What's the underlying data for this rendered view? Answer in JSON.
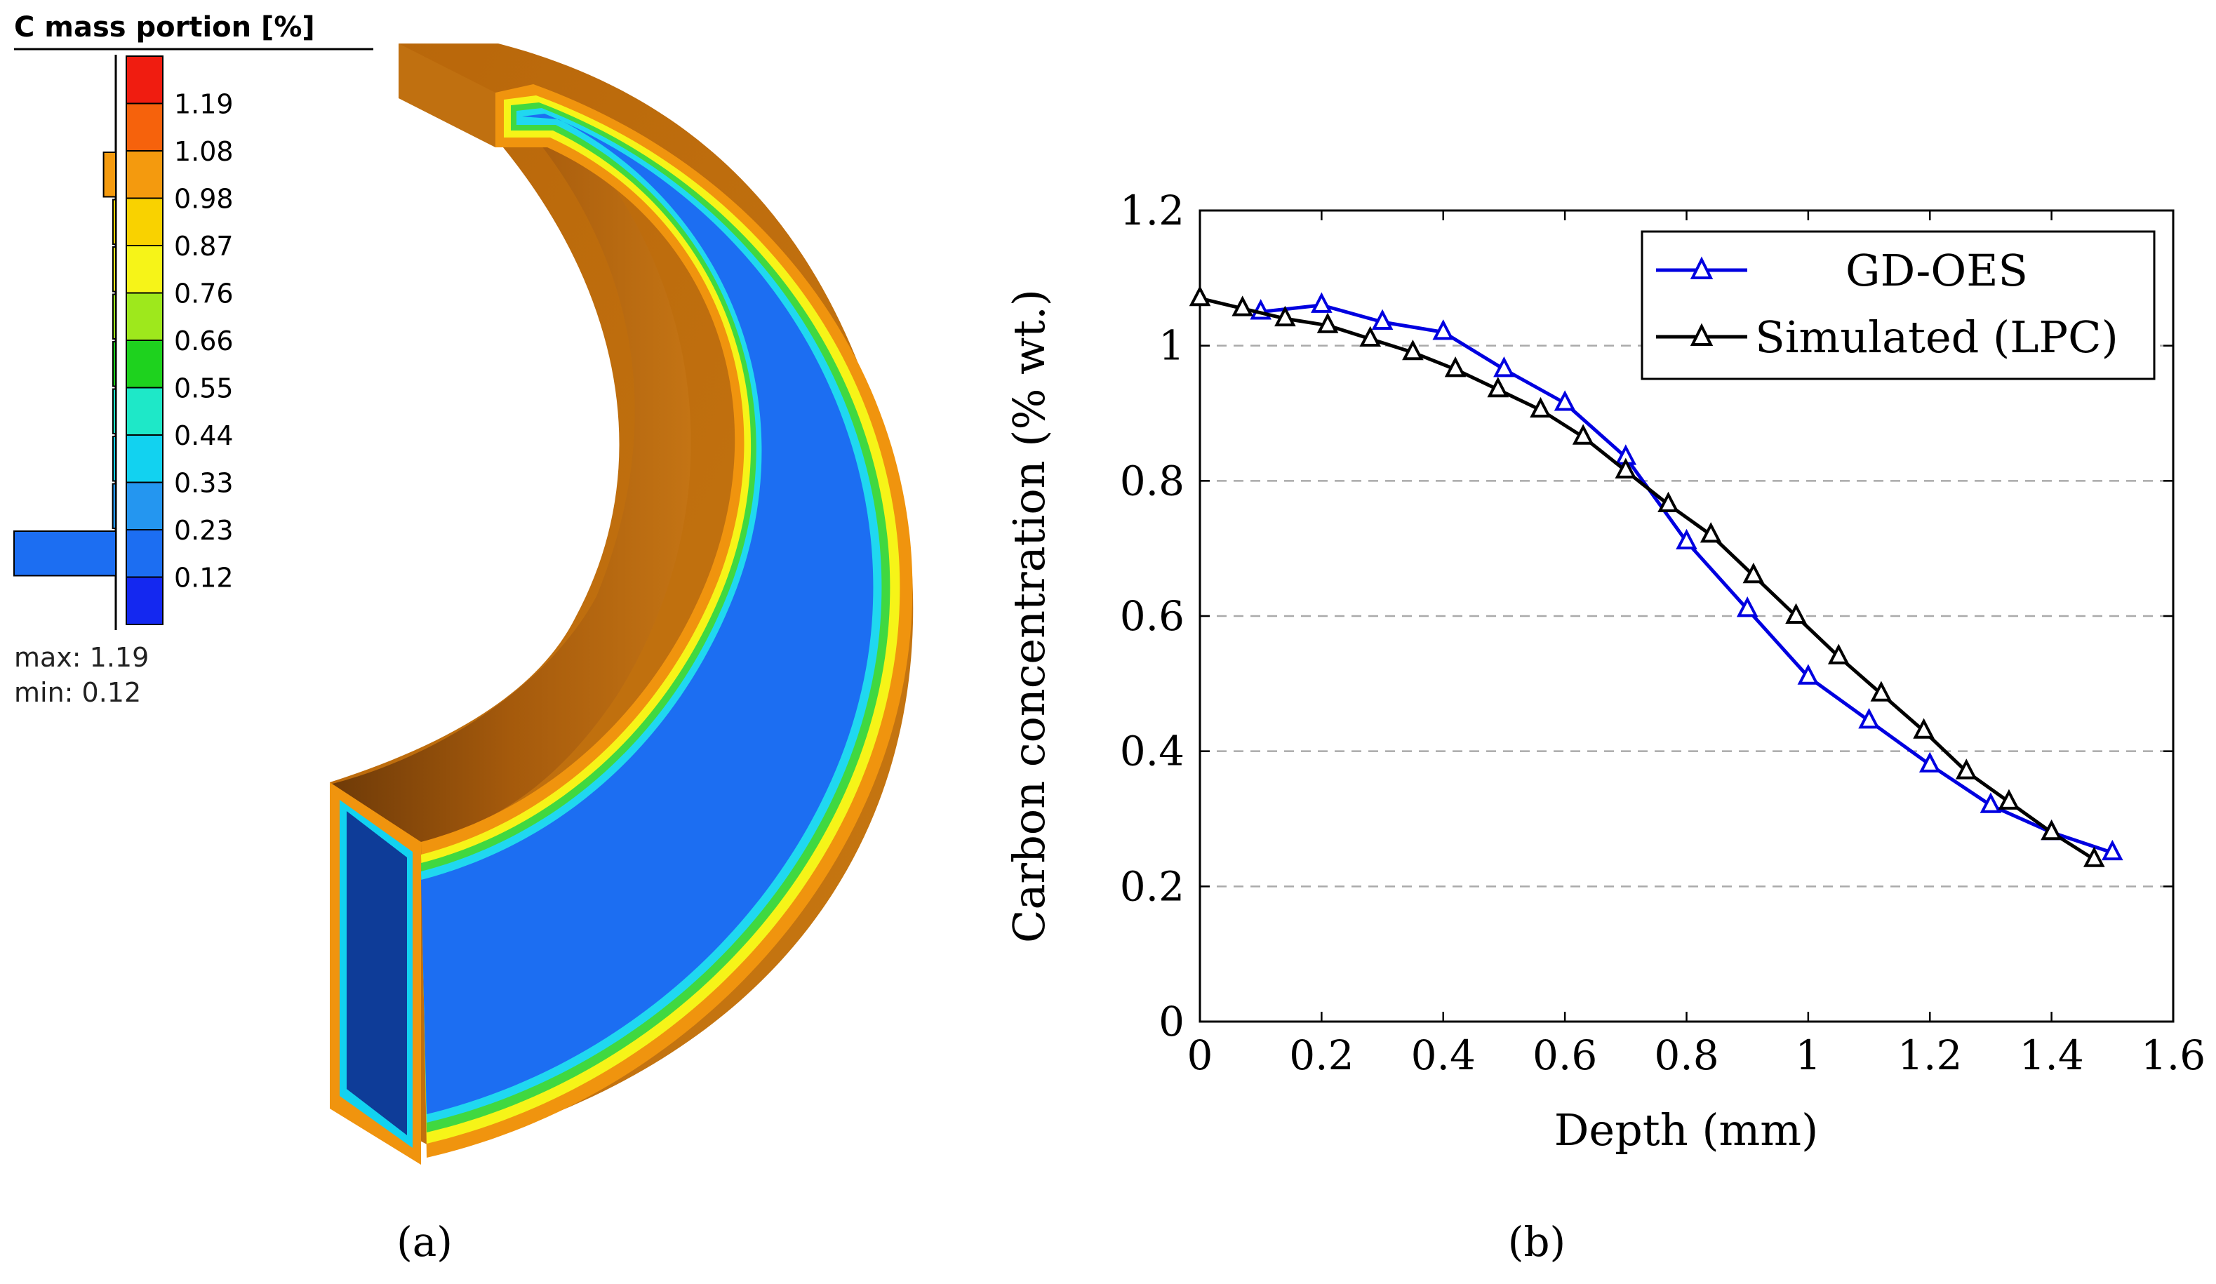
{
  "panel_a": {
    "legend": {
      "title": "C mass portion [%]",
      "levels": [
        {
          "label": "1.19",
          "color": "#f01c10",
          "fraction": 0.0
        },
        {
          "label": "1.08",
          "color": "#f6620c",
          "fraction": 0.0
        },
        {
          "label": "0.98",
          "color": "#f49a0e",
          "fraction": 0.12
        },
        {
          "label": "0.87",
          "color": "#f9d200",
          "fraction": 0.02
        },
        {
          "label": "0.76",
          "color": "#f6f418",
          "fraction": 0.01
        },
        {
          "label": "0.66",
          "color": "#9ee81c",
          "fraction": 0.01
        },
        {
          "label": "0.55",
          "color": "#1ed21e",
          "fraction": 0.01
        },
        {
          "label": "0.44",
          "color": "#1ee8c8",
          "fraction": 0.01
        },
        {
          "label": "0.33",
          "color": "#12d2f0",
          "fraction": 0.01
        },
        {
          "label": "0.23",
          "color": "#2496f0",
          "fraction": 0.03
        },
        {
          "label": "0.12",
          "color": "#1c6ef2",
          "fraction": 1.0
        },
        {
          "label": "",
          "color": "#1428f0",
          "fraction": 0.0
        }
      ],
      "max_text": "max: 1.19",
      "min_text": "min:  0.12"
    },
    "caption": "(a)"
  },
  "panel_b": {
    "caption": "(b)"
  },
  "chart_data": {
    "type": "line",
    "title": "",
    "xlabel": "Depth (mm)",
    "ylabel": "Carbon concentration (% wt.)",
    "xlim": [
      0,
      1.6
    ],
    "ylim": [
      0,
      1.2
    ],
    "xticks": [
      0,
      0.2,
      0.4,
      0.6,
      0.8,
      1,
      1.2,
      1.4,
      1.6
    ],
    "yticks": [
      0,
      0.2,
      0.4,
      0.6,
      0.8,
      1,
      1.2
    ],
    "xtick_labels": [
      "0",
      "0.2",
      "0.4",
      "0.6",
      "0.8",
      "1",
      "1.2",
      "1.4",
      "1.6"
    ],
    "ytick_labels": [
      "0",
      "0.2",
      "0.4",
      "0.6",
      "0.8",
      "1",
      "1.2"
    ],
    "grid": "horizontal dashed",
    "legend_position": "top-right",
    "series": [
      {
        "name": "GD-OES",
        "color": "#0000e0",
        "marker": "triangle-open",
        "x": [
          0.1,
          0.2,
          0.3,
          0.4,
          0.5,
          0.6,
          0.7,
          0.8,
          0.9,
          1.0,
          1.1,
          1.2,
          1.3,
          1.4,
          1.5
        ],
        "y": [
          1.05,
          1.06,
          1.035,
          1.02,
          0.965,
          0.915,
          0.835,
          0.71,
          0.61,
          0.51,
          0.445,
          0.38,
          0.32,
          0.28,
          0.25
        ]
      },
      {
        "name": "Simulated (LPC)",
        "color": "#000000",
        "marker": "triangle-open",
        "x": [
          0,
          0.07,
          0.14,
          0.21,
          0.28,
          0.35,
          0.42,
          0.49,
          0.56,
          0.63,
          0.7,
          0.77,
          0.84,
          0.91,
          0.98,
          1.05,
          1.12,
          1.19,
          1.26,
          1.33,
          1.4,
          1.47
        ],
        "y": [
          1.07,
          1.055,
          1.04,
          1.03,
          1.01,
          0.99,
          0.965,
          0.935,
          0.905,
          0.865,
          0.815,
          0.765,
          0.72,
          0.66,
          0.6,
          0.54,
          0.485,
          0.43,
          0.37,
          0.325,
          0.28,
          0.24
        ]
      }
    ]
  }
}
